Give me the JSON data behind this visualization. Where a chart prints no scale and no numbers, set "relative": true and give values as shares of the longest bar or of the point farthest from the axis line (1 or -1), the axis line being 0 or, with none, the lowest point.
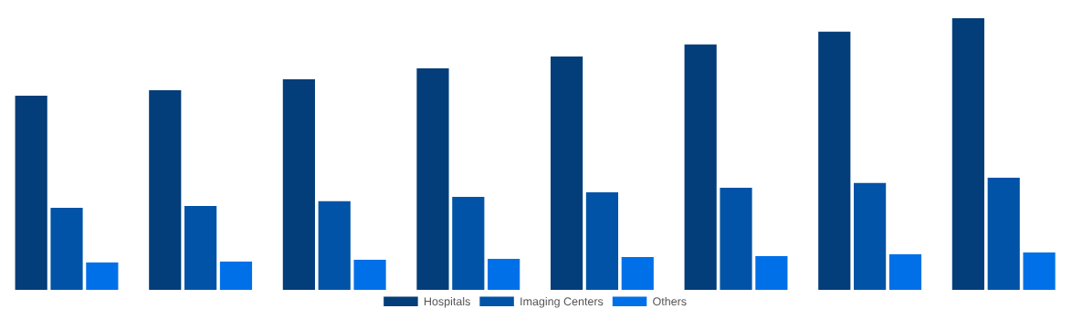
{
  "chart_data": {
    "type": "bar",
    "relative": true,
    "grid": false,
    "legend": "bottom",
    "categories": [
      null,
      null,
      null,
      null,
      null,
      null,
      null,
      null
    ],
    "series": [
      {
        "name": "Hospitals",
        "color": "#033d7a",
        "values": [
          0.715,
          0.735,
          0.775,
          0.815,
          0.859,
          0.903,
          0.95,
          1
        ]
      },
      {
        "name": "Imaging Centers",
        "color": "#0053a6",
        "values": [
          0.302,
          0.309,
          0.326,
          0.342,
          0.359,
          0.376,
          0.393,
          0.413
        ]
      },
      {
        "name": "Others",
        "color": "#0070e8",
        "values": [
          0.101,
          0.104,
          0.111,
          0.114,
          0.121,
          0.124,
          0.131,
          0.138
        ]
      }
    ]
  }
}
